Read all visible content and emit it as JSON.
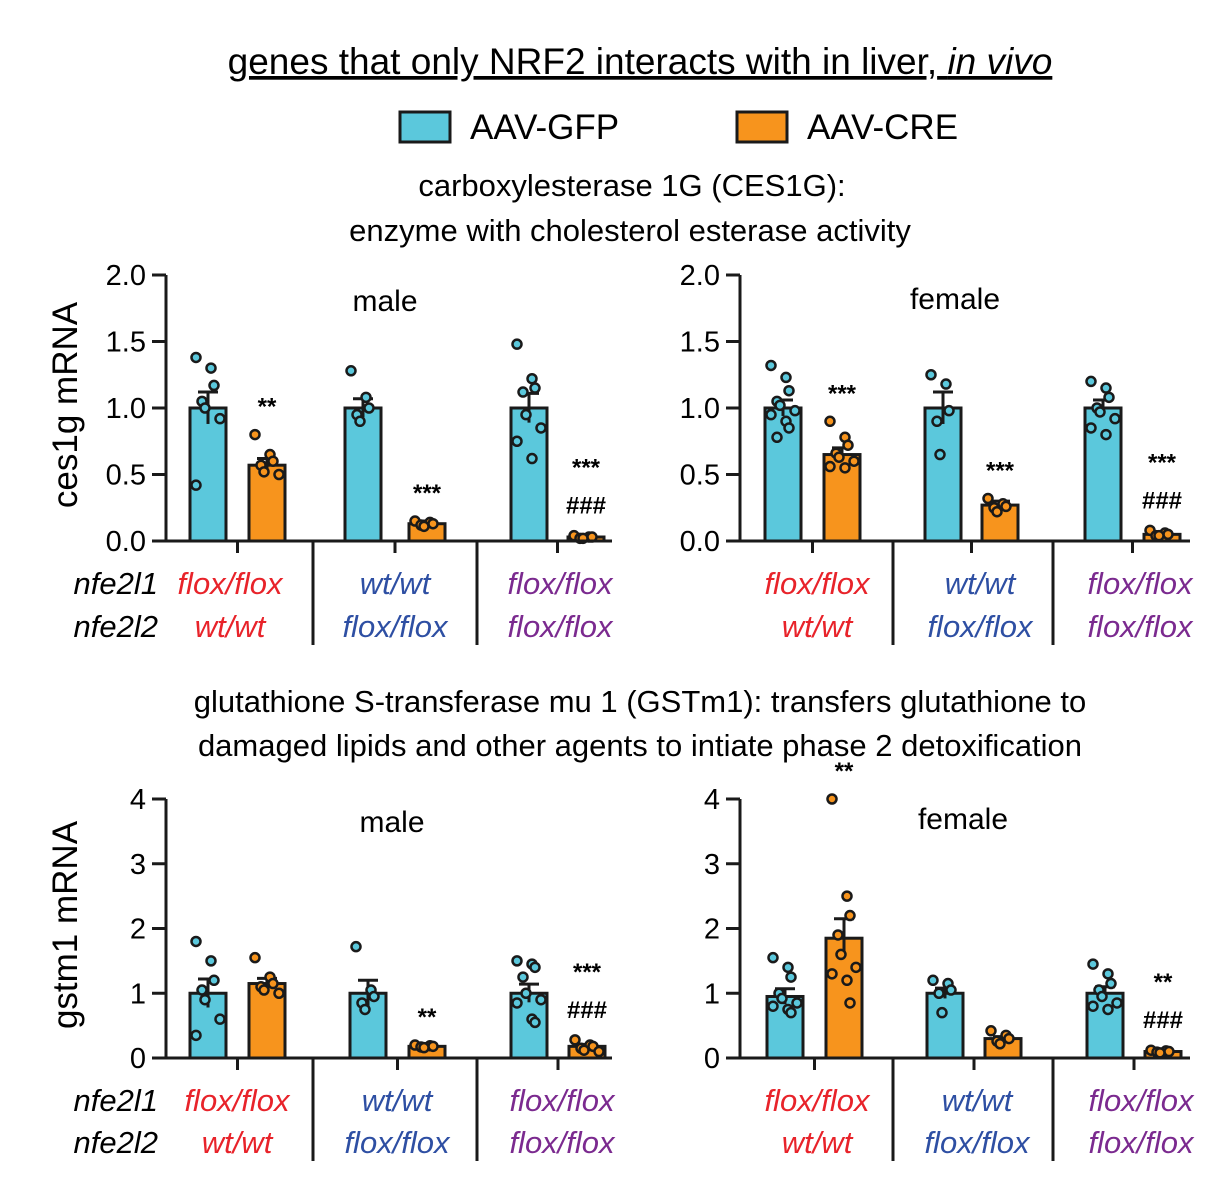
{
  "title": {
    "main": "genes that only NRF2 interacts with in liver,",
    "italic": "in vivo"
  },
  "legend": [
    {
      "label": "AAV-GFP",
      "color": "#5bc8dc"
    },
    {
      "label": "AAV-CRE",
      "color": "#f7941d"
    }
  ],
  "section1": {
    "line1": "carboxylesterase 1G (CES1G):",
    "line2": "enzyme with cholesterol esterase activity"
  },
  "section2": {
    "line1": "glutathione S-transferase mu 1 (GSTm1): transfers glutathione to",
    "line2": "damaged lipids and other agents to intiate phase 2 detoxification"
  },
  "genotype_labels": {
    "row1_gene": "nfe2l1",
    "row2_gene": "nfe2l2",
    "groups": [
      {
        "row1": "flox/flox",
        "row2": "wt/wt",
        "color": "#e8232a"
      },
      {
        "row1": "wt/wt",
        "row2": "flox/flox",
        "color": "#2e4fa3"
      },
      {
        "row1": "flox/flox",
        "row2": "flox/flox",
        "color": "#7b2a8f"
      }
    ]
  },
  "chart_data": [
    {
      "type": "bar",
      "id": "ces1g_male",
      "title": "male",
      "ylabel": "ces1g mRNA",
      "ylim": [
        0,
        2.0
      ],
      "yticks": [
        "0.0",
        "0.5",
        "1.0",
        "1.5",
        "2.0"
      ],
      "series_names": [
        "AAV-GFP",
        "AAV-CRE"
      ],
      "groups": [
        {
          "genotype": "nfe2l1 flox/flox, nfe2l2 wt/wt",
          "gfp": {
            "mean": 1.0,
            "sem": 0.12,
            "points": [
              1.38,
              1.3,
              1.17,
              1.05,
              1.0,
              0.92,
              0.42
            ]
          },
          "cre": {
            "mean": 0.57,
            "sem": 0.05,
            "points": [
              0.8,
              0.65,
              0.6,
              0.57,
              0.52,
              0.5
            ],
            "sig": "**"
          }
        },
        {
          "genotype": "nfe2l1 wt/wt, nfe2l2 flox/flox",
          "gfp": {
            "mean": 1.0,
            "sem": 0.07,
            "points": [
              1.28,
              1.08,
              1.0,
              0.95,
              0.9
            ]
          },
          "cre": {
            "mean": 0.13,
            "sem": 0.02,
            "points": [
              0.15,
              0.14,
              0.13,
              0.12,
              0.11
            ],
            "sig": "***"
          }
        },
        {
          "genotype": "nfe2l1 flox/flox, nfe2l2 flox/flox",
          "gfp": {
            "mean": 1.0,
            "sem": 0.11,
            "points": [
              1.48,
              1.22,
              1.15,
              1.12,
              0.95,
              0.85,
              0.75,
              0.62
            ]
          },
          "cre": {
            "mean": 0.03,
            "sem": 0.01,
            "points": [
              0.04,
              0.03,
              0.03,
              0.02,
              0.02
            ],
            "sig": "***",
            "sig2": "###"
          }
        }
      ]
    },
    {
      "type": "bar",
      "id": "ces1g_female",
      "title": "female",
      "ylabel": "",
      "ylim": [
        0,
        2.0
      ],
      "yticks": [
        "0.0",
        "0.5",
        "1.0",
        "1.5",
        "2.0"
      ],
      "series_names": [
        "AAV-GFP",
        "AAV-CRE"
      ],
      "groups": [
        {
          "genotype": "nfe2l1 flox/flox, nfe2l2 wt/wt",
          "gfp": {
            "mean": 1.0,
            "sem": 0.06,
            "points": [
              1.32,
              1.23,
              1.13,
              1.05,
              1.02,
              0.98,
              0.95,
              0.9,
              0.85,
              0.78
            ]
          },
          "cre": {
            "mean": 0.65,
            "sem": 0.05,
            "points": [
              0.9,
              0.78,
              0.72,
              0.66,
              0.63,
              0.6,
              0.56,
              0.55
            ],
            "sig": "***"
          }
        },
        {
          "genotype": "nfe2l1 wt/wt, nfe2l2 flox/flox",
          "gfp": {
            "mean": 1.0,
            "sem": 0.12,
            "points": [
              1.25,
              1.18,
              0.98,
              0.9,
              0.65
            ]
          },
          "cre": {
            "mean": 0.27,
            "sem": 0.03,
            "points": [
              0.32,
              0.28,
              0.26,
              0.25,
              0.22
            ],
            "sig": "***"
          }
        },
        {
          "genotype": "nfe2l1 flox/flox, nfe2l2 flox/flox",
          "gfp": {
            "mean": 1.0,
            "sem": 0.06,
            "points": [
              1.2,
              1.15,
              1.08,
              1.0,
              0.97,
              0.92,
              0.85,
              0.8
            ]
          },
          "cre": {
            "mean": 0.05,
            "sem": 0.01,
            "points": [
              0.08,
              0.06,
              0.05,
              0.04,
              0.04
            ],
            "sig": "***",
            "sig2": "###"
          }
        }
      ]
    },
    {
      "type": "bar",
      "id": "gstm1_male",
      "title": "male",
      "ylabel": "gstm1 mRNA",
      "ylim": [
        0,
        4
      ],
      "yticks": [
        "0",
        "1",
        "2",
        "3",
        "4"
      ],
      "series_names": [
        "AAV-GFP",
        "AAV-CRE"
      ],
      "groups": [
        {
          "genotype": "nfe2l1 flox/flox, nfe2l2 wt/wt",
          "gfp": {
            "mean": 1.0,
            "sem": 0.22,
            "points": [
              1.8,
              1.5,
              1.2,
              1.05,
              0.9,
              0.6,
              0.35
            ]
          },
          "cre": {
            "mean": 1.15,
            "sem": 0.08,
            "points": [
              1.55,
              1.25,
              1.15,
              1.1,
              1.05,
              1.0
            ]
          },
          "sig": ""
        },
        {
          "genotype": "nfe2l1 wt/wt, nfe2l2 flox/flox",
          "gfp": {
            "mean": 1.0,
            "sem": 0.2,
            "points": [
              1.72,
              1.05,
              0.95,
              0.85,
              0.75
            ]
          },
          "cre": {
            "mean": 0.18,
            "sem": 0.02,
            "points": [
              0.2,
              0.19,
              0.18,
              0.17,
              0.16
            ],
            "sig": "**"
          }
        },
        {
          "genotype": "nfe2l1 flox/flox, nfe2l2 flox/flox",
          "gfp": {
            "mean": 1.0,
            "sem": 0.14,
            "points": [
              1.5,
              1.45,
              1.4,
              1.25,
              1.0,
              0.9,
              0.85,
              0.6,
              0.55
            ]
          },
          "cre": {
            "mean": 0.18,
            "sem": 0.03,
            "points": [
              0.28,
              0.2,
              0.18,
              0.15,
              0.12,
              0.1
            ],
            "sig": "***",
            "sig2": "###"
          }
        }
      ]
    },
    {
      "type": "bar",
      "id": "gstm1_female",
      "title": "female",
      "ylabel": "",
      "ylim": [
        0,
        4
      ],
      "yticks": [
        "0",
        "1",
        "2",
        "3",
        "4"
      ],
      "series_names": [
        "AAV-GFP",
        "AAV-CRE"
      ],
      "groups": [
        {
          "genotype": "nfe2l1 flox/flox, nfe2l2 wt/wt",
          "gfp": {
            "mean": 0.95,
            "sem": 0.12,
            "points": [
              1.55,
              1.4,
              1.25,
              1.0,
              0.92,
              0.85,
              0.8,
              0.75,
              0.7
            ]
          },
          "cre": {
            "mean": 1.85,
            "sem": 0.3,
            "points": [
              4.0,
              2.5,
              2.2,
              1.9,
              1.6,
              1.4,
              1.3,
              1.2,
              0.85
            ],
            "sig": "**"
          }
        },
        {
          "genotype": "nfe2l1 wt/wt, nfe2l2 flox/flox",
          "gfp": {
            "mean": 1.0,
            "sem": 0.08,
            "points": [
              1.2,
              1.15,
              1.05,
              1.0,
              0.7
            ]
          },
          "cre": {
            "mean": 0.3,
            "sem": 0.03,
            "points": [
              0.42,
              0.35,
              0.3,
              0.26,
              0.22
            ]
          }
        },
        {
          "genotype": "nfe2l1 flox/flox, nfe2l2 flox/flox",
          "gfp": {
            "mean": 1.0,
            "sem": 0.1,
            "points": [
              1.45,
              1.3,
              1.15,
              1.05,
              0.95,
              0.85,
              0.8,
              0.75
            ]
          },
          "cre": {
            "mean": 0.1,
            "sem": 0.01,
            "points": [
              0.12,
              0.11,
              0.1,
              0.09,
              0.08
            ],
            "sig": "**",
            "sig2": "###"
          }
        }
      ]
    }
  ]
}
